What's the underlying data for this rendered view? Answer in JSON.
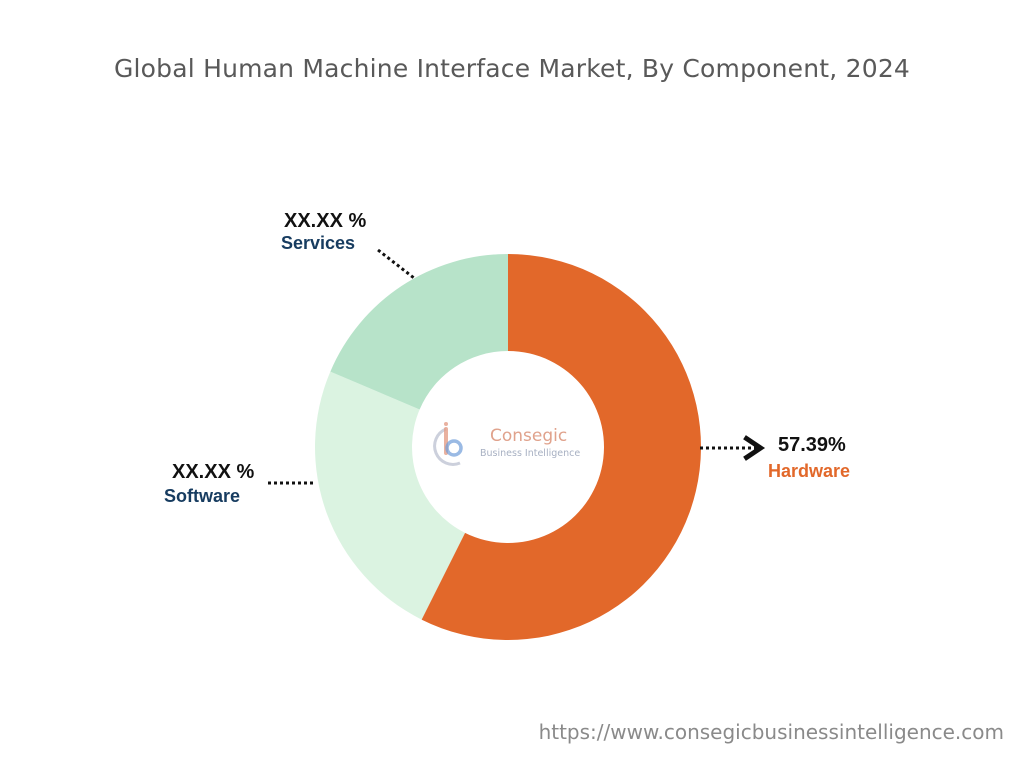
{
  "page": {
    "title": "Global Human Machine Interface Market, By Component, 2024",
    "footer_url": "https://www.consegicbusinessintelligence.com"
  },
  "logo": {
    "name": "Consegic",
    "tagline": "Business Intelligence"
  },
  "colors": {
    "hardware": "#e2682a",
    "software": "#dbf3e1",
    "services": "#b7e3c9",
    "hardware_label": "#e2682a",
    "category_label": "#173c60"
  },
  "chart_data": {
    "type": "pie",
    "variant": "donut",
    "title": "Global Human Machine Interface Market, By Component, 2024",
    "start_angle_deg": 0,
    "direction": "clockwise",
    "slices": [
      {
        "label": "Hardware",
        "value": 57.39,
        "value_label": "57.39%",
        "color": "#e2682a"
      },
      {
        "label": "Software",
        "value": 24.0,
        "value_label": "XX.XX %",
        "color": "#dbf3e1"
      },
      {
        "label": "Services",
        "value": 18.61,
        "value_label": "XX.XX %",
        "color": "#b7e3c9"
      }
    ]
  }
}
